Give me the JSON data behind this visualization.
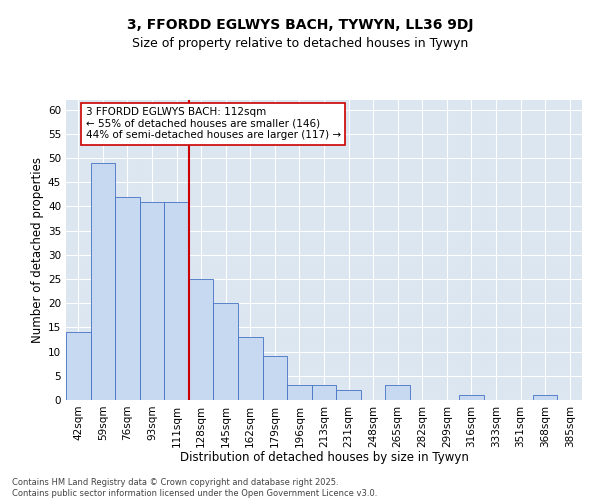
{
  "title1": "3, FFORDD EGLWYS BACH, TYWYN, LL36 9DJ",
  "title2": "Size of property relative to detached houses in Tywyn",
  "xlabel": "Distribution of detached houses by size in Tywyn",
  "ylabel": "Number of detached properties",
  "categories": [
    "42sqm",
    "59sqm",
    "76sqm",
    "93sqm",
    "111sqm",
    "128sqm",
    "145sqm",
    "162sqm",
    "179sqm",
    "196sqm",
    "213sqm",
    "231sqm",
    "248sqm",
    "265sqm",
    "282sqm",
    "299sqm",
    "316sqm",
    "333sqm",
    "351sqm",
    "368sqm",
    "385sqm"
  ],
  "values": [
    14,
    49,
    42,
    41,
    41,
    25,
    20,
    13,
    9,
    3,
    3,
    2,
    0,
    3,
    0,
    0,
    1,
    0,
    0,
    1,
    0
  ],
  "bar_color": "#c6d9f1",
  "bar_edge_color": "#4472c4",
  "vline_index": 4,
  "vline_color": "#cc0000",
  "annotation_text": "3 FFORDD EGLWYS BACH: 112sqm\n← 55% of detached houses are smaller (146)\n44% of semi-detached houses are larger (117) →",
  "ylim": [
    0,
    62
  ],
  "yticks": [
    0,
    5,
    10,
    15,
    20,
    25,
    30,
    35,
    40,
    45,
    50,
    55,
    60
  ],
  "bg_color": "#dce6f1",
  "footer": "Contains HM Land Registry data © Crown copyright and database right 2025.\nContains public sector information licensed under the Open Government Licence v3.0.",
  "title1_fontsize": 10,
  "title2_fontsize": 9,
  "xlabel_fontsize": 8.5,
  "ylabel_fontsize": 8.5,
  "tick_fontsize": 7.5,
  "ann_fontsize": 7.5,
  "footer_fontsize": 6.0
}
